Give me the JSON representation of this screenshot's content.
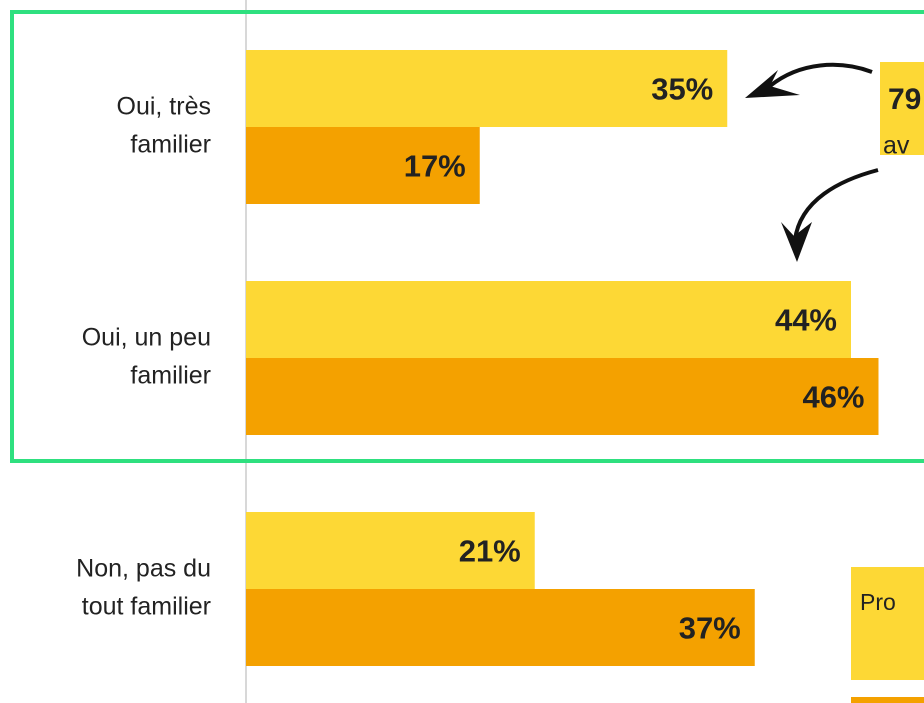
{
  "chart_data": {
    "type": "hbar",
    "categories": [
      [
        "Oui, très",
        "familier"
      ],
      [
        "Oui, un peu",
        "familier"
      ],
      [
        "Non, pas du",
        "tout familier"
      ]
    ],
    "series": [
      {
        "name": "Pro",
        "color": "#fdd835",
        "values": [
          35,
          44,
          21
        ],
        "value_labels": [
          "35%",
          "44%",
          "21%"
        ]
      },
      {
        "color": "#f4a100",
        "values": [
          17,
          46,
          37
        ],
        "value_labels": [
          "17%",
          "46%",
          "37%"
        ]
      }
    ],
    "annotation": [
      "79",
      "av"
    ]
  }
}
